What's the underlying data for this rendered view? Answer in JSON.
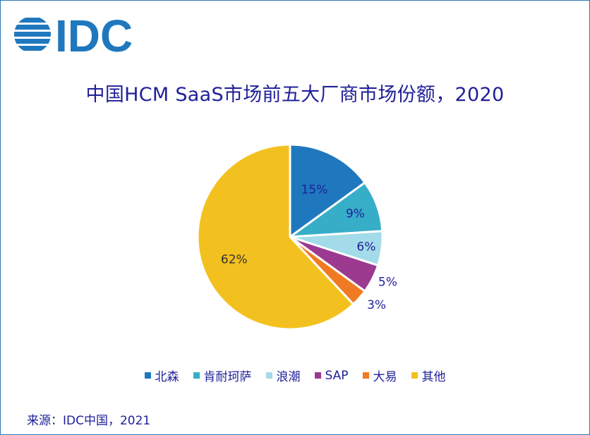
{
  "brand": {
    "logo_text": "IDC",
    "logo_color": "#1f78be"
  },
  "chart_data": {
    "type": "pie",
    "title": "中国HCM SaaS市场前五大厂商市场份额，2020",
    "categories": [
      "北森",
      "肯耐珂萨",
      "浪潮",
      "SAP",
      "大易",
      "其他"
    ],
    "values": [
      15,
      9,
      6,
      5,
      3,
      62
    ],
    "labels": [
      "15%",
      "9%",
      "6%",
      "5%",
      "3%",
      "62%"
    ],
    "colors": [
      "#1f78be",
      "#36aec8",
      "#a3dbe8",
      "#9b3a8f",
      "#f07a22",
      "#f3c11f"
    ],
    "legend_position": "bottom"
  },
  "footer": {
    "source": "来源：IDC中国，2021"
  }
}
